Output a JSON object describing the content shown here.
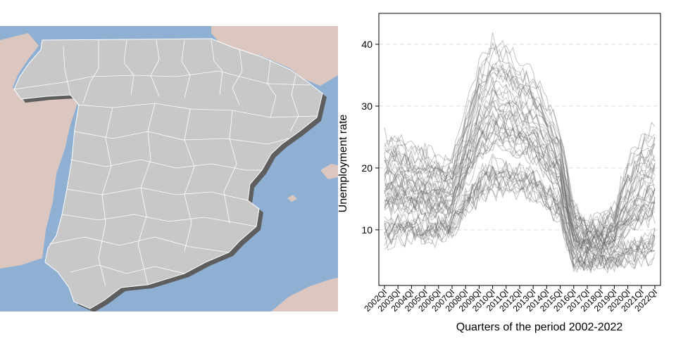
{
  "colors": {
    "sea": "#8fb0d3",
    "foreign_land": "#dcc7c0",
    "relief_shade": "#c4aaa2",
    "spain_land": "#c8c8c8",
    "province_border": "#ffffff",
    "coast_shadow": "#5e5e5e",
    "series_line": "#606060",
    "gridline": "#dddddd"
  },
  "chart_data": {
    "type": "line",
    "xlabel": "Quarters of the period 2002-2022",
    "ylabel": "Unemployment rate",
    "x_ticks": [
      "2002QI",
      "2003QI",
      "2004QI",
      "2005QI",
      "2006QI",
      "2007QI",
      "2008QI",
      "2009QI",
      "2010QI",
      "2011QI",
      "2012QI",
      "2013QI",
      "2014QI",
      "2015QI",
      "2016QI",
      "2017QI",
      "2018QI",
      "2019QI",
      "2020QI",
      "2021QI",
      "2022QI"
    ],
    "y_ticks": [
      10,
      20,
      30,
      40
    ],
    "ylim": [
      1,
      45
    ],
    "xlim": [
      "2002QI",
      "2022QI"
    ],
    "grid": "horizontal dashed",
    "series_count": 52,
    "series_profile": {
      "x": [
        "2002QI",
        "2003QI",
        "2004QI",
        "2005QI",
        "2006QI",
        "2007QI",
        "2008QI",
        "2009QI",
        "2010QI",
        "2011QI",
        "2012QI",
        "2013QI",
        "2014QI",
        "2015QI",
        "2016QI",
        "2017QI",
        "2018QI",
        "2019QI",
        "2020QI",
        "2021QI",
        "2022QI"
      ],
      "low": [
        7,
        8,
        8,
        8,
        8,
        9,
        12,
        14,
        15,
        15,
        15,
        15,
        13,
        11,
        4,
        4,
        4,
        4,
        4,
        4,
        5
      ],
      "high": [
        26,
        26,
        24,
        24,
        22,
        22,
        30,
        38,
        42,
        41,
        38,
        36,
        32,
        27,
        14,
        12,
        12,
        14,
        22,
        26,
        28
      ]
    }
  }
}
